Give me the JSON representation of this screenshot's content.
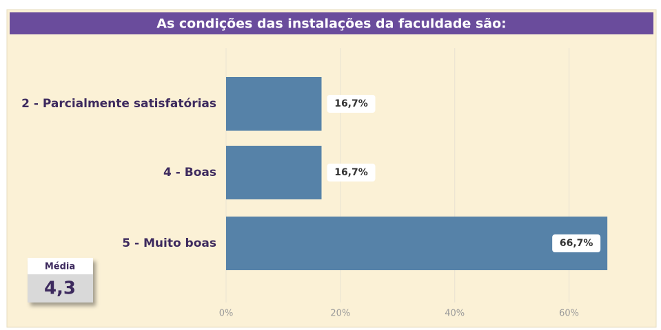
{
  "chart_data": {
    "type": "bar",
    "orientation": "horizontal",
    "title": "As condições das instalações da faculdade são:",
    "categories": [
      "2 - Parcialmente satisfatórias",
      "4 - Boas",
      "5 - Muito boas"
    ],
    "values": [
      16.7,
      16.7,
      66.7
    ],
    "value_labels": [
      "16,7%",
      "16,7%",
      "66,7%"
    ],
    "color": "#5682a8",
    "xlim": [
      0,
      75
    ],
    "xticks": [
      {
        "value": 0,
        "label": "0%"
      },
      {
        "value": 20,
        "label": "20%"
      },
      {
        "value": 40,
        "label": "40%"
      },
      {
        "value": 60,
        "label": "60%"
      }
    ],
    "grid": true
  },
  "kpi": {
    "label": "Média",
    "value": 4.3,
    "value_label": "4,3"
  }
}
